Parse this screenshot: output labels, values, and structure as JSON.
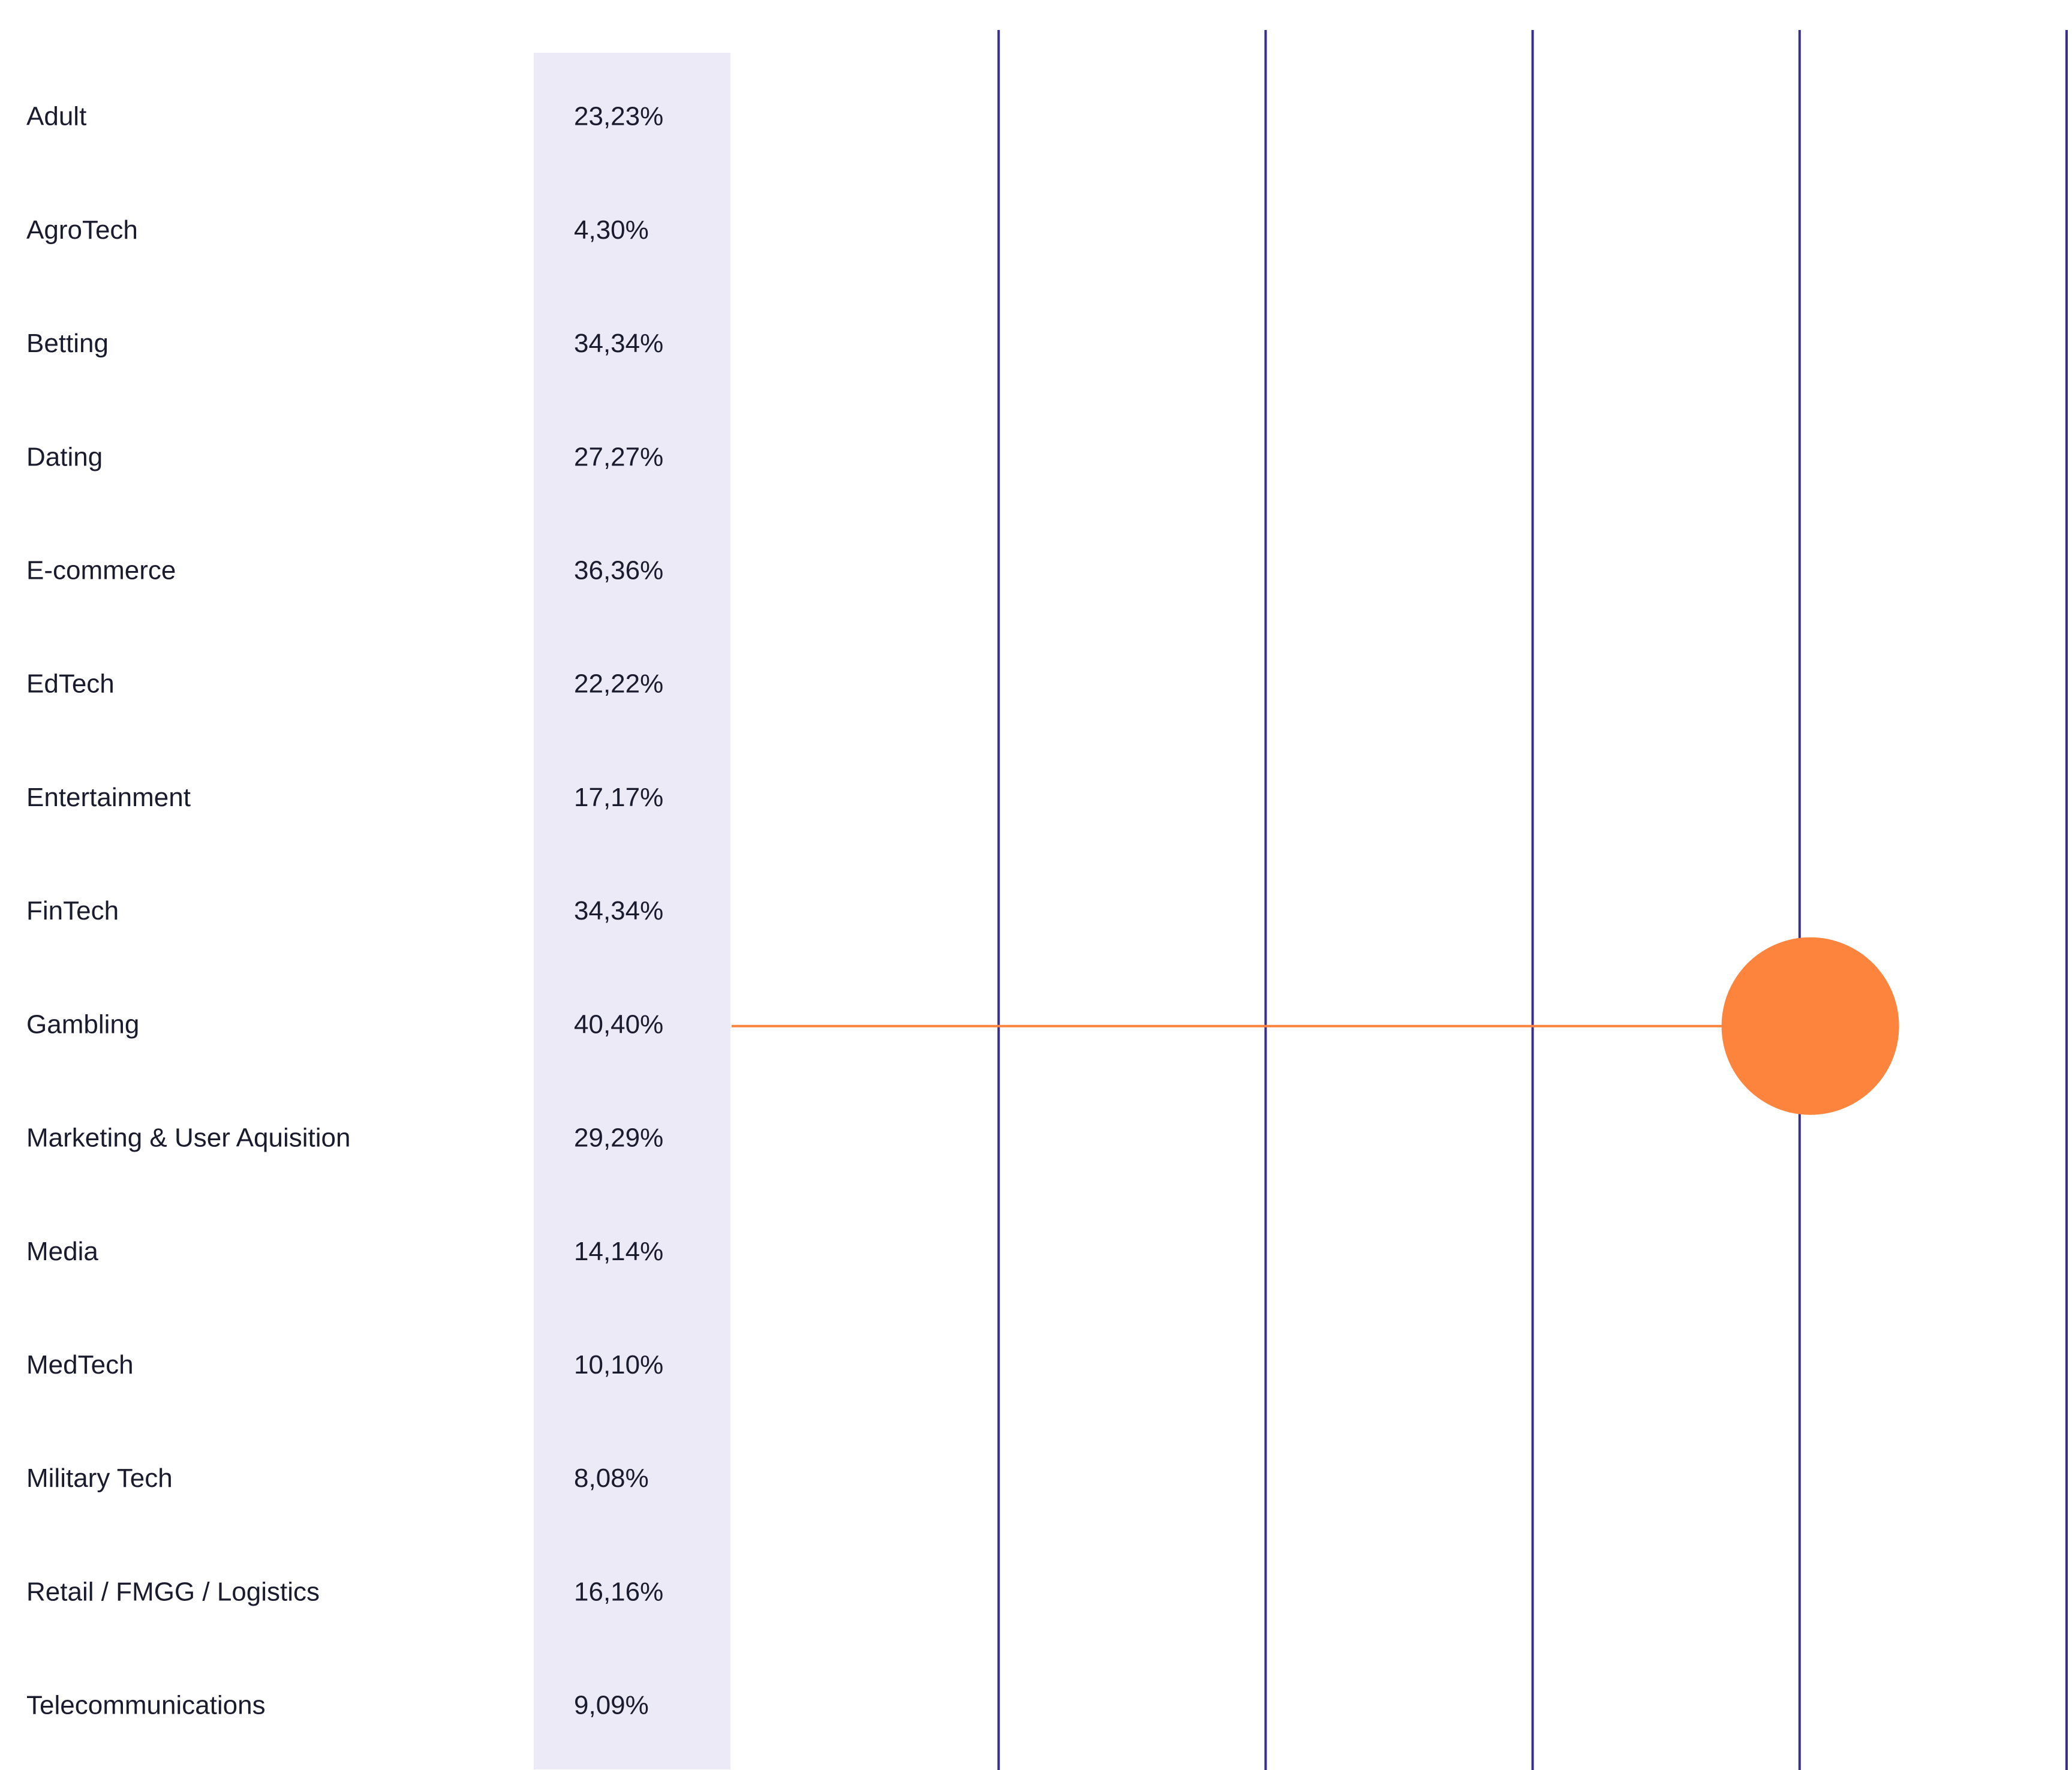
{
  "chart_data": {
    "type": "lollipop",
    "categories": [
      "Adult",
      "AgroTech",
      "Betting",
      "Dating",
      "E-commerce",
      "EdTech",
      "Entertainment",
      "FinTech",
      "Gambling",
      "Marketing & User Aquisition",
      "Media",
      "MedTech",
      "Military Tech",
      "Retail / FMGG / Logistics",
      "Telecommunications"
    ],
    "value_labels": [
      "23,23%",
      "4,30%",
      "34,34%",
      "27,27%",
      "36,36%",
      "22,22%",
      "17,17%",
      "34,34%",
      "40,40%",
      "29,29%",
      "14,14%",
      "10,10%",
      "8,08%",
      "16,16%",
      "9,09%"
    ],
    "values": [
      23.23,
      4.3,
      34.34,
      27.27,
      36.36,
      22.22,
      17.17,
      34.34,
      40.4,
      29.29,
      14.14,
      10.1,
      8.08,
      16.16,
      9.09
    ],
    "highlighted_category": "Gambling",
    "highlighted_value": 40.4,
    "xlim": [
      0,
      50
    ],
    "gridline_values": [
      10,
      20,
      30,
      40,
      50
    ],
    "grid": true,
    "title": "",
    "xlabel": "",
    "ylabel": "",
    "colors": {
      "gridline": "#3a2f8f",
      "value_column_bg": "#eceaf6",
      "highlight": "#fc843d",
      "text": "#1b1b2e"
    }
  }
}
